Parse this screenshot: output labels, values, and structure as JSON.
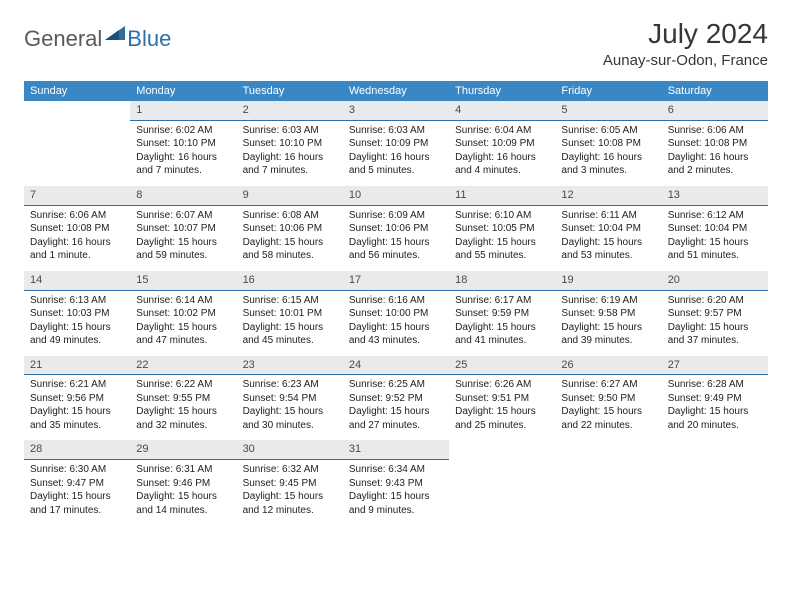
{
  "logo": {
    "general": "General",
    "blue": "Blue"
  },
  "header": {
    "month_title": "July 2024",
    "location": "Aunay-sur-Odon, France"
  },
  "colors": {
    "header_bg": "#3a87c6",
    "header_text": "#ffffff",
    "daynum_bg": "#e8eaec",
    "daynum_border": "#2f6fa8",
    "logo_general": "#5a5a5a",
    "logo_blue": "#2f6fa8",
    "title_color": "#363636"
  },
  "weekdays": [
    "Sunday",
    "Monday",
    "Tuesday",
    "Wednesday",
    "Thursday",
    "Friday",
    "Saturday"
  ],
  "weeks": [
    [
      null,
      {
        "n": "1",
        "sr": "Sunrise: 6:02 AM",
        "ss": "Sunset: 10:10 PM",
        "dl1": "Daylight: 16 hours",
        "dl2": "and 7 minutes."
      },
      {
        "n": "2",
        "sr": "Sunrise: 6:03 AM",
        "ss": "Sunset: 10:10 PM",
        "dl1": "Daylight: 16 hours",
        "dl2": "and 7 minutes."
      },
      {
        "n": "3",
        "sr": "Sunrise: 6:03 AM",
        "ss": "Sunset: 10:09 PM",
        "dl1": "Daylight: 16 hours",
        "dl2": "and 5 minutes."
      },
      {
        "n": "4",
        "sr": "Sunrise: 6:04 AM",
        "ss": "Sunset: 10:09 PM",
        "dl1": "Daylight: 16 hours",
        "dl2": "and 4 minutes."
      },
      {
        "n": "5",
        "sr": "Sunrise: 6:05 AM",
        "ss": "Sunset: 10:08 PM",
        "dl1": "Daylight: 16 hours",
        "dl2": "and 3 minutes."
      },
      {
        "n": "6",
        "sr": "Sunrise: 6:06 AM",
        "ss": "Sunset: 10:08 PM",
        "dl1": "Daylight: 16 hours",
        "dl2": "and 2 minutes."
      }
    ],
    [
      {
        "n": "7",
        "sr": "Sunrise: 6:06 AM",
        "ss": "Sunset: 10:08 PM",
        "dl1": "Daylight: 16 hours",
        "dl2": "and 1 minute."
      },
      {
        "n": "8",
        "sr": "Sunrise: 6:07 AM",
        "ss": "Sunset: 10:07 PM",
        "dl1": "Daylight: 15 hours",
        "dl2": "and 59 minutes."
      },
      {
        "n": "9",
        "sr": "Sunrise: 6:08 AM",
        "ss": "Sunset: 10:06 PM",
        "dl1": "Daylight: 15 hours",
        "dl2": "and 58 minutes."
      },
      {
        "n": "10",
        "sr": "Sunrise: 6:09 AM",
        "ss": "Sunset: 10:06 PM",
        "dl1": "Daylight: 15 hours",
        "dl2": "and 56 minutes."
      },
      {
        "n": "11",
        "sr": "Sunrise: 6:10 AM",
        "ss": "Sunset: 10:05 PM",
        "dl1": "Daylight: 15 hours",
        "dl2": "and 55 minutes."
      },
      {
        "n": "12",
        "sr": "Sunrise: 6:11 AM",
        "ss": "Sunset: 10:04 PM",
        "dl1": "Daylight: 15 hours",
        "dl2": "and 53 minutes."
      },
      {
        "n": "13",
        "sr": "Sunrise: 6:12 AM",
        "ss": "Sunset: 10:04 PM",
        "dl1": "Daylight: 15 hours",
        "dl2": "and 51 minutes."
      }
    ],
    [
      {
        "n": "14",
        "sr": "Sunrise: 6:13 AM",
        "ss": "Sunset: 10:03 PM",
        "dl1": "Daylight: 15 hours",
        "dl2": "and 49 minutes."
      },
      {
        "n": "15",
        "sr": "Sunrise: 6:14 AM",
        "ss": "Sunset: 10:02 PM",
        "dl1": "Daylight: 15 hours",
        "dl2": "and 47 minutes."
      },
      {
        "n": "16",
        "sr": "Sunrise: 6:15 AM",
        "ss": "Sunset: 10:01 PM",
        "dl1": "Daylight: 15 hours",
        "dl2": "and 45 minutes."
      },
      {
        "n": "17",
        "sr": "Sunrise: 6:16 AM",
        "ss": "Sunset: 10:00 PM",
        "dl1": "Daylight: 15 hours",
        "dl2": "and 43 minutes."
      },
      {
        "n": "18",
        "sr": "Sunrise: 6:17 AM",
        "ss": "Sunset: 9:59 PM",
        "dl1": "Daylight: 15 hours",
        "dl2": "and 41 minutes."
      },
      {
        "n": "19",
        "sr": "Sunrise: 6:19 AM",
        "ss": "Sunset: 9:58 PM",
        "dl1": "Daylight: 15 hours",
        "dl2": "and 39 minutes."
      },
      {
        "n": "20",
        "sr": "Sunrise: 6:20 AM",
        "ss": "Sunset: 9:57 PM",
        "dl1": "Daylight: 15 hours",
        "dl2": "and 37 minutes."
      }
    ],
    [
      {
        "n": "21",
        "sr": "Sunrise: 6:21 AM",
        "ss": "Sunset: 9:56 PM",
        "dl1": "Daylight: 15 hours",
        "dl2": "and 35 minutes."
      },
      {
        "n": "22",
        "sr": "Sunrise: 6:22 AM",
        "ss": "Sunset: 9:55 PM",
        "dl1": "Daylight: 15 hours",
        "dl2": "and 32 minutes."
      },
      {
        "n": "23",
        "sr": "Sunrise: 6:23 AM",
        "ss": "Sunset: 9:54 PM",
        "dl1": "Daylight: 15 hours",
        "dl2": "and 30 minutes."
      },
      {
        "n": "24",
        "sr": "Sunrise: 6:25 AM",
        "ss": "Sunset: 9:52 PM",
        "dl1": "Daylight: 15 hours",
        "dl2": "and 27 minutes."
      },
      {
        "n": "25",
        "sr": "Sunrise: 6:26 AM",
        "ss": "Sunset: 9:51 PM",
        "dl1": "Daylight: 15 hours",
        "dl2": "and 25 minutes."
      },
      {
        "n": "26",
        "sr": "Sunrise: 6:27 AM",
        "ss": "Sunset: 9:50 PM",
        "dl1": "Daylight: 15 hours",
        "dl2": "and 22 minutes."
      },
      {
        "n": "27",
        "sr": "Sunrise: 6:28 AM",
        "ss": "Sunset: 9:49 PM",
        "dl1": "Daylight: 15 hours",
        "dl2": "and 20 minutes."
      }
    ],
    [
      {
        "n": "28",
        "sr": "Sunrise: 6:30 AM",
        "ss": "Sunset: 9:47 PM",
        "dl1": "Daylight: 15 hours",
        "dl2": "and 17 minutes."
      },
      {
        "n": "29",
        "sr": "Sunrise: 6:31 AM",
        "ss": "Sunset: 9:46 PM",
        "dl1": "Daylight: 15 hours",
        "dl2": "and 14 minutes."
      },
      {
        "n": "30",
        "sr": "Sunrise: 6:32 AM",
        "ss": "Sunset: 9:45 PM",
        "dl1": "Daylight: 15 hours",
        "dl2": "and 12 minutes."
      },
      {
        "n": "31",
        "sr": "Sunrise: 6:34 AM",
        "ss": "Sunset: 9:43 PM",
        "dl1": "Daylight: 15 hours",
        "dl2": "and 9 minutes."
      },
      null,
      null,
      null
    ]
  ]
}
